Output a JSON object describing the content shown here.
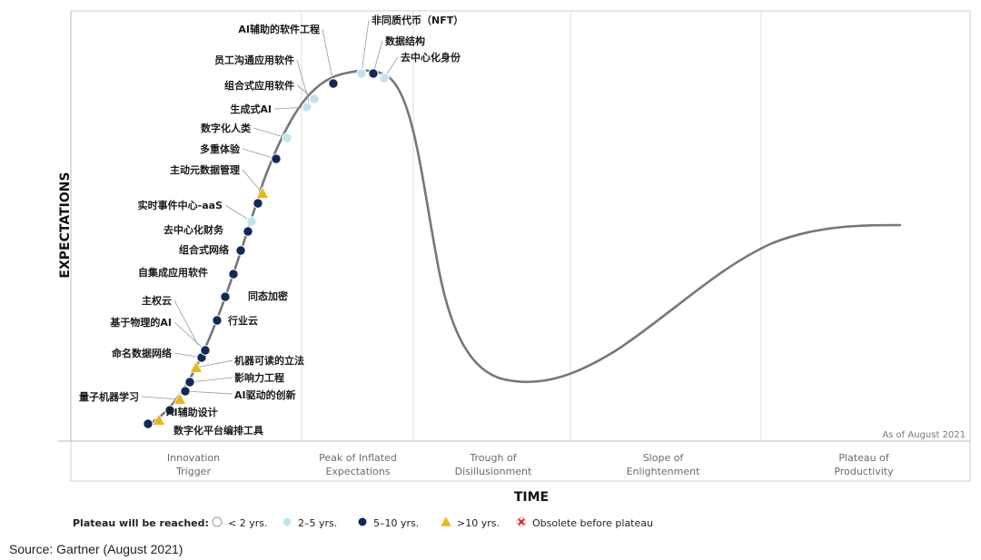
{
  "chart_data": {
    "type": "scatter",
    "title": "",
    "xlabel": "TIME",
    "ylabel": "EXPECTATIONS",
    "as_of": "As of August 2021",
    "phases": [
      "Innovation\nTrigger",
      "Peak of Inflated\nExpectations",
      "Trough of\nDisillusionment",
      "Slope of\nEnlightenment",
      "Plateau of\nProductivity"
    ],
    "legend_title": "Plateau will be reached:",
    "legend": [
      {
        "key": "lt2",
        "label": "< 2 yrs.",
        "symbol": "circle",
        "color": "#ffffff"
      },
      {
        "key": "2to5",
        "label": "2–5 yrs.",
        "symbol": "circle",
        "color": "#bfe3f2"
      },
      {
        "key": "5to10",
        "label": "5–10 yrs.",
        "symbol": "circle",
        "color": "#0f2a5a"
      },
      {
        "key": "gt10",
        "label": ">10 yrs.",
        "symbol": "triangle",
        "color": "#e9b71a"
      },
      {
        "key": "obsolete",
        "label": "Obsolete before plateau",
        "symbol": "x",
        "color": "#d42020"
      }
    ],
    "points": [
      {
        "name": "数字化平台编排工具",
        "cat": "5to10"
      },
      {
        "name": "",
        "cat": "gt10"
      },
      {
        "name": "AI辅助设计",
        "cat": "5to10"
      },
      {
        "name": "量子机器学习",
        "cat": "gt10"
      },
      {
        "name": "AI驱动的创新",
        "cat": "5to10"
      },
      {
        "name": "影响力工程",
        "cat": "5to10"
      },
      {
        "name": "机器可读的立法",
        "cat": "gt10"
      },
      {
        "name": "命名数据网络",
        "cat": "5to10"
      },
      {
        "name": "基于物理的AI",
        "cat": "5to10"
      },
      {
        "name": "行业云",
        "cat": "5to10"
      },
      {
        "name": "主权云",
        "cat": ""
      },
      {
        "name": "同态加密",
        "cat": "5to10"
      },
      {
        "name": "自集成应用软件",
        "cat": "5to10"
      },
      {
        "name": "组合式网络",
        "cat": "5to10"
      },
      {
        "name": "去中心化财务",
        "cat": "5to10"
      },
      {
        "name": "实时事件中心-aaS",
        "cat": "2to5"
      },
      {
        "name": "",
        "cat": "5to10"
      },
      {
        "name": "主动元数据管理",
        "cat": "gt10"
      },
      {
        "name": "多重体验",
        "cat": "5to10"
      },
      {
        "name": "数字化人类",
        "cat": "2to5"
      },
      {
        "name": "生成式AI",
        "cat": "2to5"
      },
      {
        "name": "组合式应用软件",
        "cat": "2to5"
      },
      {
        "name": "员工沟通应用软件",
        "cat": ""
      },
      {
        "name": "AI辅助的软件工程",
        "cat": "5to10"
      },
      {
        "name": "非同质代币（NFT）",
        "cat": "2to5"
      },
      {
        "name": "数据结构",
        "cat": "5to10"
      },
      {
        "name": "去中心化身份",
        "cat": "2to5"
      }
    ]
  },
  "source": "Source: Gartner (August 2021)"
}
